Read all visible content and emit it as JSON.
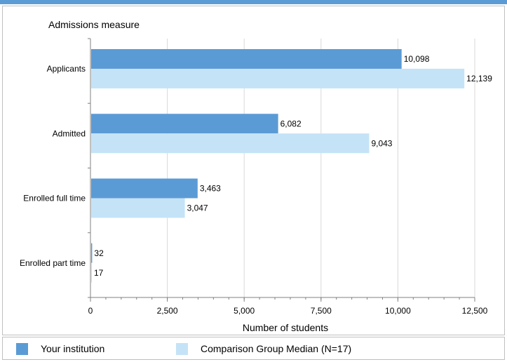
{
  "chart_data": {
    "type": "bar",
    "orientation": "horizontal",
    "title": "Admissions measure",
    "xlabel": "Number of students",
    "ylabel": "",
    "xlim": [
      0,
      12500
    ],
    "x_ticks": [
      0,
      2500,
      5000,
      7500,
      10000,
      12500
    ],
    "x_tick_labels": [
      "0",
      "2,500",
      "5,000",
      "7,500",
      "10,000",
      "12,500"
    ],
    "grid": true,
    "legend_position": "bottom",
    "categories": [
      "Applicants",
      "Admitted",
      "Enrolled full time",
      "Enrolled part time"
    ],
    "series": [
      {
        "name": "Your institution",
        "color": "#5b9bd5",
        "values": [
          10098,
          6082,
          3463,
          32
        ],
        "labels": [
          "10,098",
          "6,082",
          "3,463",
          "32"
        ]
      },
      {
        "name": "Comparison Group Median (N=17)",
        "color": "#c5e3f7",
        "values": [
          12139,
          9043,
          3047,
          17
        ],
        "labels": [
          "12,139",
          "9,043",
          "3,047",
          "17"
        ]
      }
    ]
  }
}
